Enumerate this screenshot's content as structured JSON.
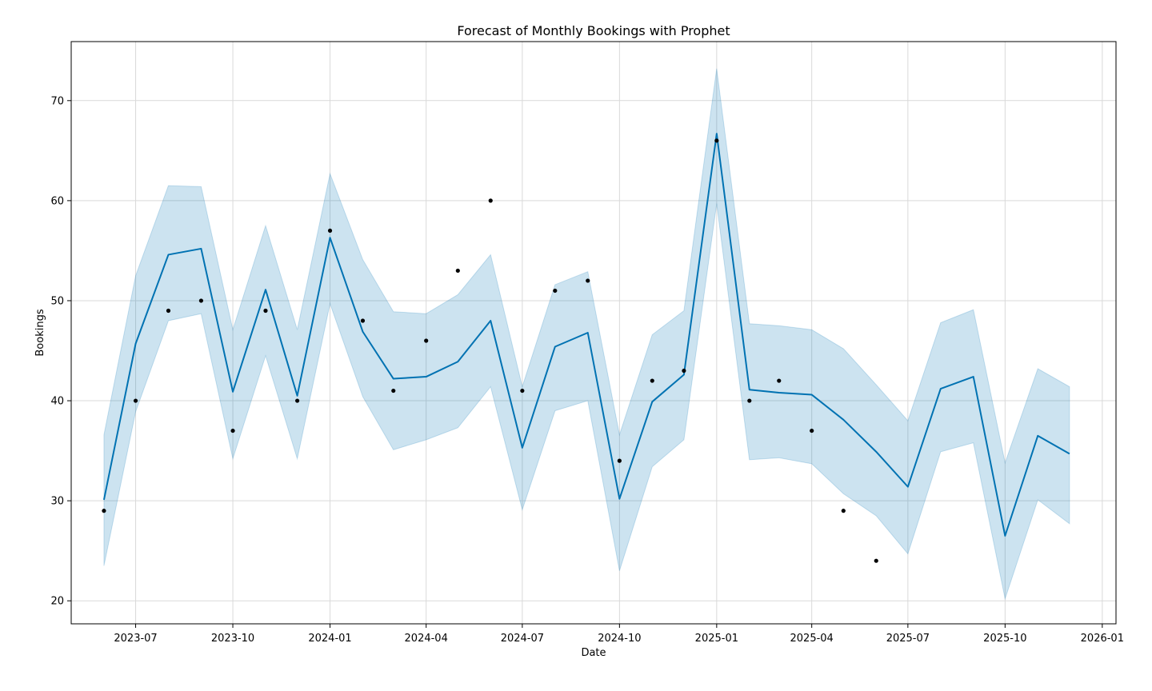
{
  "chart_data": {
    "type": "line",
    "title": "Forecast of Monthly Bookings with Prophet",
    "xlabel": "Date",
    "ylabel": "Bookings",
    "xlim": [
      "2023-05-01",
      "2026-01-14"
    ],
    "ylim": [
      17.7,
      75.9
    ],
    "grid": true,
    "x_ticks": [
      "2023-07-01",
      "2023-10-01",
      "2024-01-01",
      "2024-04-01",
      "2024-07-01",
      "2024-10-01",
      "2025-01-01",
      "2025-04-01",
      "2025-07-01",
      "2025-10-01",
      "2026-01-01"
    ],
    "x_tick_labels": [
      "2023-07",
      "2023-10",
      "2024-01",
      "2024-04",
      "2024-07",
      "2024-10",
      "2025-01",
      "2025-04",
      "2025-07",
      "2025-10",
      "2026-01"
    ],
    "y_ticks": [
      20,
      30,
      40,
      50,
      60,
      70
    ],
    "colors": {
      "forecast": "#0072B2",
      "interval": "#0072B2",
      "actual": "#000000",
      "grid": "#d9d9d9"
    },
    "observed": {
      "x": [
        "2023-06-01",
        "2023-07-01",
        "2023-08-01",
        "2023-09-01",
        "2023-10-01",
        "2023-11-01",
        "2023-12-01",
        "2024-01-01",
        "2024-02-01",
        "2024-03-01",
        "2024-04-01",
        "2024-05-01",
        "2024-06-01",
        "2024-07-01",
        "2024-08-01",
        "2024-09-01",
        "2024-10-01",
        "2024-11-01",
        "2024-12-01",
        "2025-01-01",
        "2025-02-01",
        "2025-03-01",
        "2025-04-01",
        "2025-05-01",
        "2025-06-01"
      ],
      "y": [
        29,
        40,
        49,
        50,
        37,
        49,
        40,
        57,
        48,
        41,
        46,
        53,
        60,
        41,
        51,
        52,
        34,
        42,
        43,
        66,
        40,
        42,
        37,
        29,
        24
      ]
    },
    "forecast": {
      "x": [
        "2023-06-01",
        "2023-07-01",
        "2023-08-01",
        "2023-09-01",
        "2023-10-01",
        "2023-11-01",
        "2023-12-01",
        "2024-01-01",
        "2024-02-01",
        "2024-03-01",
        "2024-04-01",
        "2024-05-01",
        "2024-06-01",
        "2024-07-01",
        "2024-08-01",
        "2024-09-01",
        "2024-10-01",
        "2024-11-01",
        "2024-12-01",
        "2025-01-01",
        "2025-02-01",
        "2025-03-01",
        "2025-04-01",
        "2025-05-01",
        "2025-06-01",
        "2025-07-01",
        "2025-08-01",
        "2025-09-01",
        "2025-10-01",
        "2025-11-01",
        "2025-12-01"
      ],
      "yhat": [
        30.1,
        45.7,
        54.6,
        55.2,
        40.9,
        51.1,
        40.5,
        56.3,
        46.9,
        42.2,
        42.4,
        43.9,
        48.0,
        35.3,
        45.4,
        46.8,
        30.2,
        39.9,
        42.6,
        66.7,
        41.1,
        40.8,
        40.6,
        38.1,
        34.9,
        31.4,
        41.2,
        42.4,
        26.5,
        36.5,
        34.7
      ],
      "yhat_lower": [
        23.5,
        38.9,
        48.0,
        48.7,
        34.2,
        44.5,
        34.2,
        49.7,
        40.4,
        35.1,
        36.1,
        37.3,
        41.4,
        29.1,
        39.0,
        40.0,
        23.0,
        33.4,
        36.1,
        59.7,
        34.1,
        34.3,
        33.7,
        30.7,
        28.5,
        24.7,
        34.9,
        35.8,
        20.2,
        30.1,
        27.7
      ],
      "yhat_upper": [
        36.6,
        52.5,
        61.5,
        61.4,
        47.1,
        57.5,
        47.1,
        62.7,
        54.1,
        48.9,
        48.7,
        50.6,
        54.6,
        41.4,
        51.6,
        52.9,
        36.6,
        46.6,
        49.0,
        73.2,
        47.7,
        47.5,
        47.1,
        45.2,
        41.6,
        38.0,
        47.8,
        49.1,
        33.8,
        43.2,
        41.4
      ]
    }
  }
}
